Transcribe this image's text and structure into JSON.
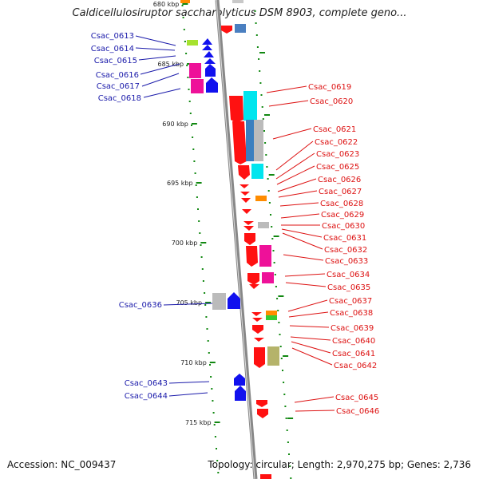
{
  "title": "Caldicellulosiruptor saccharolyticus DSM 8903, complete geno...",
  "accession_text": "Accession: NC_009437",
  "topology_text": "Topology: circular; Length: 2,970,275 bp; Genes: 2,736",
  "colors": {
    "left_label": "#1a1aaa",
    "right_label": "#dd1111",
    "tick_mark": "#118811",
    "backbone": "#888888"
  },
  "tick_labels": [
    "680 kbp",
    "685 kbp",
    "690 kbp",
    "695 kbp",
    "700 kbp",
    "705 kbp",
    "710 kbp",
    "715 kbp"
  ],
  "left_genes": [
    "Csac_0613",
    "Csac_0614",
    "Csac_0615",
    "Csac_0616",
    "Csac_0617",
    "Csac_0618",
    "Csac_0636",
    "Csac_0643",
    "Csac_0644"
  ],
  "right_genes": [
    "Csac_0619",
    "Csac_0620",
    "Csac_0621",
    "Csac_0622",
    "Csac_0623",
    "Csac_0625",
    "Csac_0626",
    "Csac_0627",
    "Csac_0628",
    "Csac_0629",
    "Csac_0630",
    "Csac_0631",
    "Csac_0632",
    "Csac_0633",
    "Csac_0634",
    "Csac_0635",
    "Csac_0637",
    "Csac_0638",
    "Csac_0639",
    "Csac_0640",
    "Csac_0641",
    "Csac_0642",
    "Csac_0645",
    "Csac_0646"
  ]
}
